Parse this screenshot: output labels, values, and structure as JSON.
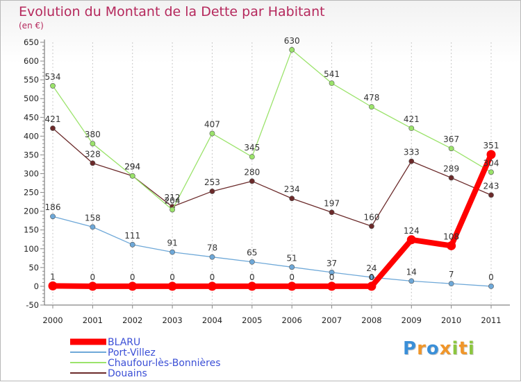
{
  "chart_data": {
    "type": "line",
    "title": "Evolution du Montant de la Dette par Habitant",
    "subtitle": "(en €)",
    "xlabel": "",
    "ylabel": "",
    "categories": [
      "2000",
      "2001",
      "2002",
      "2003",
      "2004",
      "2005",
      "2006",
      "2007",
      "2008",
      "2009",
      "2010",
      "2011"
    ],
    "ylim": [
      -50,
      650
    ],
    "yticks": [
      -50,
      0,
      50,
      100,
      150,
      200,
      250,
      300,
      350,
      400,
      450,
      500,
      550,
      600,
      650
    ],
    "grid": "vertical dashed",
    "legend_position": "bottom-left",
    "series": [
      {
        "name": "BLARU",
        "color": "#ff0000",
        "values": [
          1,
          0,
          0,
          0,
          0,
          0,
          0,
          0,
          0,
          124,
          108,
          351
        ],
        "labels": [
          "1",
          "0",
          "0",
          "0",
          "0",
          "0",
          "0",
          "0",
          "0",
          "124",
          "108",
          "351"
        ]
      },
      {
        "name": "Port-Villez",
        "color": "#6ea8d8",
        "values": [
          186,
          158,
          111,
          91,
          78,
          65,
          51,
          37,
          24,
          14,
          7,
          0
        ],
        "labels": [
          "186",
          "158",
          "111",
          "91",
          "78",
          "65",
          "51",
          "37",
          "24",
          "14",
          "7",
          "0"
        ]
      },
      {
        "name": "Chaufour-lès-Bonnières",
        "color": "#9be36b",
        "values": [
          534,
          380,
          294,
          204,
          407,
          345,
          630,
          541,
          478,
          421,
          367,
          304
        ],
        "labels": [
          "534",
          "380",
          "294",
          "204",
          "407",
          "345",
          "630",
          "541",
          "478",
          "421",
          "367",
          "304"
        ]
      },
      {
        "name": "Douains",
        "color": "#6b2a2a",
        "values": [
          421,
          328,
          294,
          212,
          253,
          280,
          234,
          197,
          160,
          333,
          289,
          243
        ],
        "labels": [
          "421",
          "328",
          "294",
          "212",
          "253",
          "280",
          "234",
          "197",
          "160",
          "333",
          "289",
          "243"
        ]
      }
    ]
  },
  "logo": {
    "letters": [
      "P",
      "r",
      "o",
      "x",
      "i",
      "t",
      "i"
    ],
    "colors": [
      "#3a8fd8",
      "#f0962a",
      "#3a8fd8",
      "#f0962a",
      "#8cc63f",
      "#f0962a",
      "#8cc63f"
    ]
  }
}
